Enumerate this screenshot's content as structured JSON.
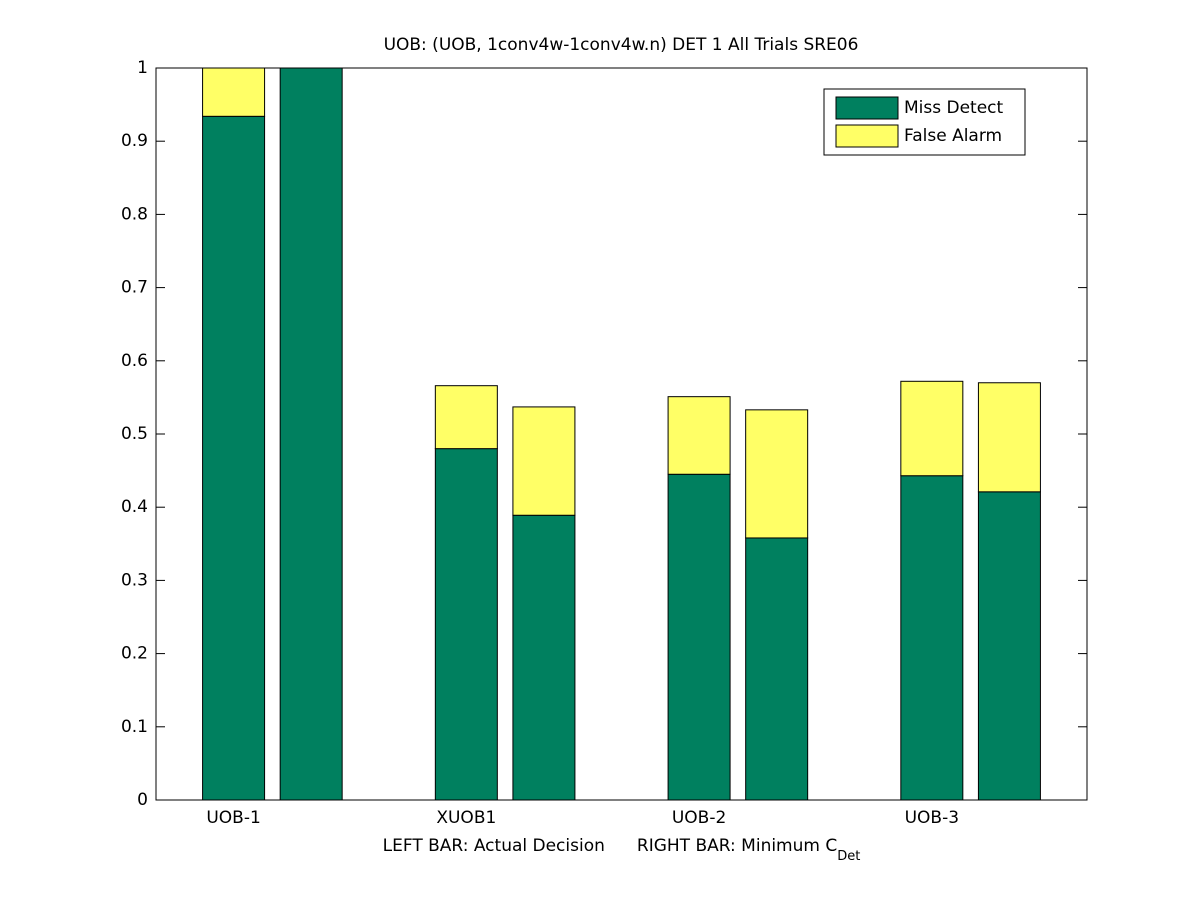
{
  "chart_data": {
    "type": "stacked-pair-bar",
    "title": "UOB: (UOB, 1conv4w-1conv4w.n) DET 1 All Trials SRE06",
    "categories": [
      "UOB-1",
      "XUOB1",
      "UOB-2",
      "UOB-3"
    ],
    "x_label": {
      "left": "LEFT BAR: Actual Decision",
      "right": "RIGHT BAR: Minimum C",
      "subscript": "Det"
    },
    "series": [
      {
        "name": "Miss Detect",
        "color": "#00805f",
        "values": [
          [
            0.934,
            1.0
          ],
          [
            0.48,
            0.389
          ],
          [
            0.445,
            0.358
          ],
          [
            0.443,
            0.421
          ]
        ]
      },
      {
        "name": "False Alarm",
        "color": "#ffff66",
        "values": [
          [
            0.066,
            0
          ],
          [
            0.086,
            0.148
          ],
          [
            0.106,
            0.175
          ],
          [
            0.129,
            0.149
          ]
        ]
      }
    ],
    "ylim": [
      0,
      1
    ],
    "yticks": [
      0,
      0.1,
      0.2,
      0.3,
      0.4,
      0.5,
      0.6,
      0.7,
      0.8,
      0.9,
      1
    ],
    "grid": false,
    "legend": "top-right"
  }
}
